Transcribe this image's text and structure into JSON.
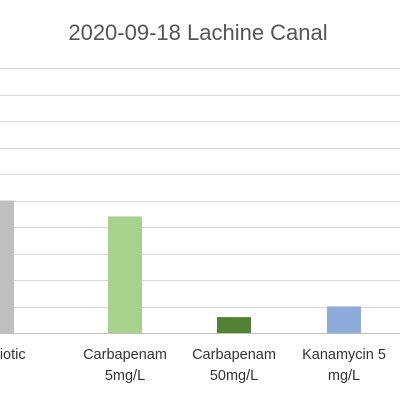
{
  "chart_data": {
    "type": "bar",
    "title": "2020-09-18 Lachine Canal",
    "xlabel": "",
    "ylabel": "",
    "categories": [
      [
        "antibiotic"
      ],
      [
        "Carbapenam",
        "5mg/L"
      ],
      [
        "Carbapenam",
        "50mg/L"
      ],
      [
        "Kanamycin 5",
        "mg/L"
      ]
    ],
    "values": [
      50,
      44,
      6,
      10
    ],
    "colors": [
      "#bfbfbf",
      "#a9d18e",
      "#548235",
      "#8faadc"
    ],
    "ylim": [
      0,
      100
    ],
    "gridlines": [
      10,
      20,
      30,
      40,
      50,
      60,
      70,
      80,
      90,
      100
    ],
    "grid": true,
    "legend": "none"
  }
}
